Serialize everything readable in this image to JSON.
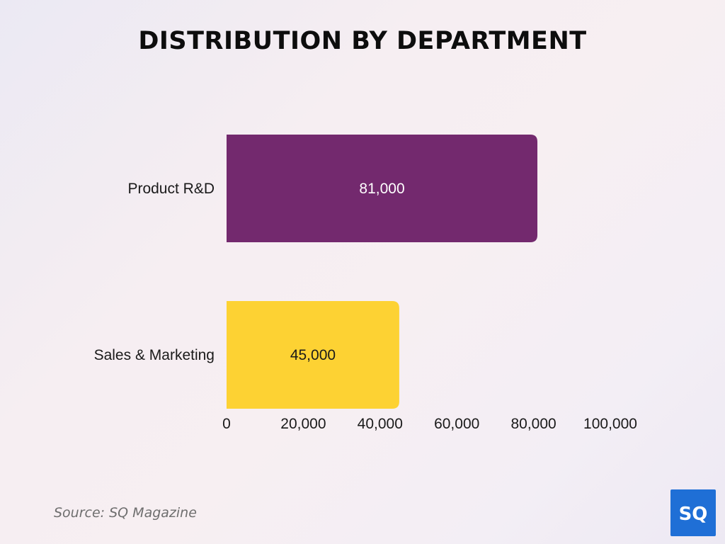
{
  "title": "DISTRIBUTION BY DEPARTMENT",
  "source": "Source: SQ Magazine",
  "logo": {
    "text": "SQ",
    "color": "#1f6fd6"
  },
  "chart_data": {
    "type": "bar",
    "orientation": "horizontal",
    "title": "DISTRIBUTION BY DEPARTMENT",
    "categories": [
      "Product R&D",
      "Sales & Marketing"
    ],
    "values": [
      81000,
      45000
    ],
    "value_labels": [
      "81,000",
      "45,000"
    ],
    "colors": [
      "#73296e",
      "#fdd233"
    ],
    "label_colors": [
      "#ffffff",
      "#1a1a1a"
    ],
    "xlim": [
      0,
      100000
    ],
    "x_ticks": [
      0,
      20000,
      40000,
      60000,
      80000,
      100000
    ],
    "x_tick_labels": [
      "0",
      "20,000",
      "40,000",
      "60,000",
      "80,000",
      "100,000"
    ],
    "xlabel": "",
    "ylabel": "",
    "grid": false,
    "legend": "none"
  }
}
